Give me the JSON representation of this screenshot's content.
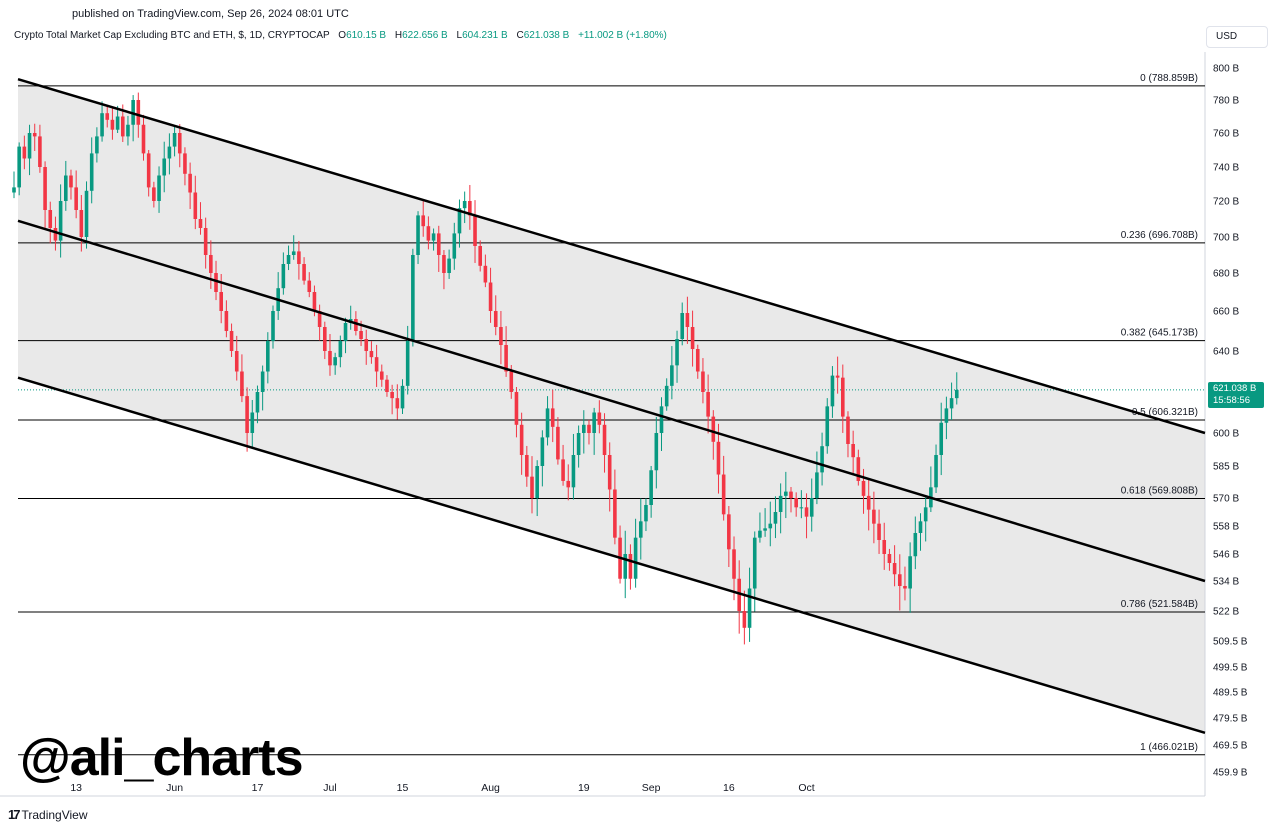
{
  "header": {
    "published": "published on TradingView.com, Sep 26, 2024 08:01 UTC",
    "symbol": "Crypto Total Market Cap Excluding BTC and ETH, $, 1D, CRYPTOCAP",
    "open_label": "O",
    "open": "610.15 B",
    "high_label": "H",
    "high": "622.656 B",
    "low_label": "L",
    "low": "604.231 B",
    "close_label": "C",
    "close": "621.038 B",
    "change": "+11.002 B (+1.80%)"
  },
  "currency_button": "USD",
  "watermark": "@ali_charts",
  "footer_brand": "TradingView",
  "footer_glyph": "17",
  "last_price": {
    "value": "621.038 B",
    "countdown": "15:58:56"
  },
  "colors": {
    "up": "#089981",
    "down": "#f23645",
    "channel_fill": "#e9e9e9",
    "line": "#000000"
  },
  "chart_data": {
    "type": "candlestick",
    "title": "Crypto Total Market Cap Excluding BTC and ETH",
    "y_unit": "B",
    "yaxis_ticks": [
      "800 B",
      "780 B",
      "760 B",
      "740 B",
      "720 B",
      "700 B",
      "680 B",
      "660 B",
      "640 B",
      "600 B",
      "585 B",
      "570 B",
      "558 B",
      "546 B",
      "534 B",
      "522 B",
      "509.5 B",
      "499.5 B",
      "489.5 B",
      "479.5 B",
      "469.5 B",
      "459.9 B"
    ],
    "ytick_values": [
      800,
      780,
      760,
      740,
      720,
      700,
      680,
      660,
      640,
      600,
      585,
      570,
      558,
      546,
      534,
      522,
      509.5,
      499.5,
      489.5,
      479.5,
      469.5,
      459.9
    ],
    "xaxis_ticks": [
      {
        "label": "13",
        "day": 12
      },
      {
        "label": "Jun",
        "day": 31
      },
      {
        "label": "17",
        "day": 47
      },
      {
        "label": "Jul",
        "day": 61
      },
      {
        "label": "15",
        "day": 75
      },
      {
        "label": "Aug",
        "day": 92
      },
      {
        "label": "19",
        "day": 110
      },
      {
        "label": "Sep",
        "day": 123
      },
      {
        "label": "16",
        "day": 138
      },
      {
        "label": "Oct",
        "day": 153
      }
    ],
    "fib_levels": [
      {
        "label": "0 (788.859B)",
        "value": 788.859
      },
      {
        "label": "0.236 (696.708B)",
        "value": 696.708
      },
      {
        "label": "0.382 (645.173B)",
        "value": 645.173
      },
      {
        "label": "0.5 (606.321B)",
        "value": 606.321
      },
      {
        "label": "0.618 (569.808B)",
        "value": 569.808
      },
      {
        "label": "0.786 (521.584B)",
        "value": 521.584
      },
      {
        "label": "1 (466.021B)",
        "value": 466.021
      }
    ],
    "channel": {
      "upper": {
        "start": 793,
        "end": 600
      },
      "middle": {
        "start": 709,
        "end": 534
      },
      "lower": {
        "start": 627,
        "end": 474
      }
    },
    "current_price": 621.038,
    "closes": [
      728,
      752,
      745,
      760,
      758,
      740,
      715,
      705,
      698,
      720,
      735,
      728,
      715,
      700,
      726,
      748,
      758,
      772,
      768,
      762,
      770,
      758,
      765,
      780,
      765,
      748,
      728,
      720,
      735,
      745,
      752,
      760,
      748,
      736,
      725,
      710,
      705,
      690,
      680,
      670,
      660,
      650,
      640,
      630,
      618,
      600,
      610,
      620,
      630,
      645,
      660,
      672,
      685,
      690,
      692,
      685,
      676,
      670,
      660,
      652,
      640,
      633,
      637,
      645,
      654,
      656,
      650,
      646,
      640,
      637,
      630,
      626,
      620,
      617,
      612,
      623,
      645,
      690,
      712,
      706,
      698,
      702,
      690,
      680,
      688,
      702,
      716,
      720,
      712,
      695,
      684,
      675,
      660,
      652,
      643,
      630,
      620,
      604,
      590,
      580,
      570,
      585,
      598,
      612,
      603,
      588,
      578,
      575,
      590,
      600,
      604,
      600,
      610,
      604,
      590,
      574,
      553,
      535,
      546,
      535,
      553,
      560,
      567,
      583,
      600,
      613,
      623,
      633,
      646,
      659,
      652,
      641,
      630,
      620,
      608,
      596,
      581,
      563,
      548,
      535,
      522,
      515,
      531,
      553,
      556,
      557,
      559,
      564,
      571,
      573,
      570,
      566,
      566,
      562,
      570,
      582,
      594,
      613,
      628,
      627,
      608,
      595,
      589,
      578,
      571,
      565,
      559,
      552,
      546,
      542,
      537,
      532,
      531,
      545,
      555,
      560,
      566,
      575,
      590,
      605,
      612,
      617,
      621
    ]
  }
}
